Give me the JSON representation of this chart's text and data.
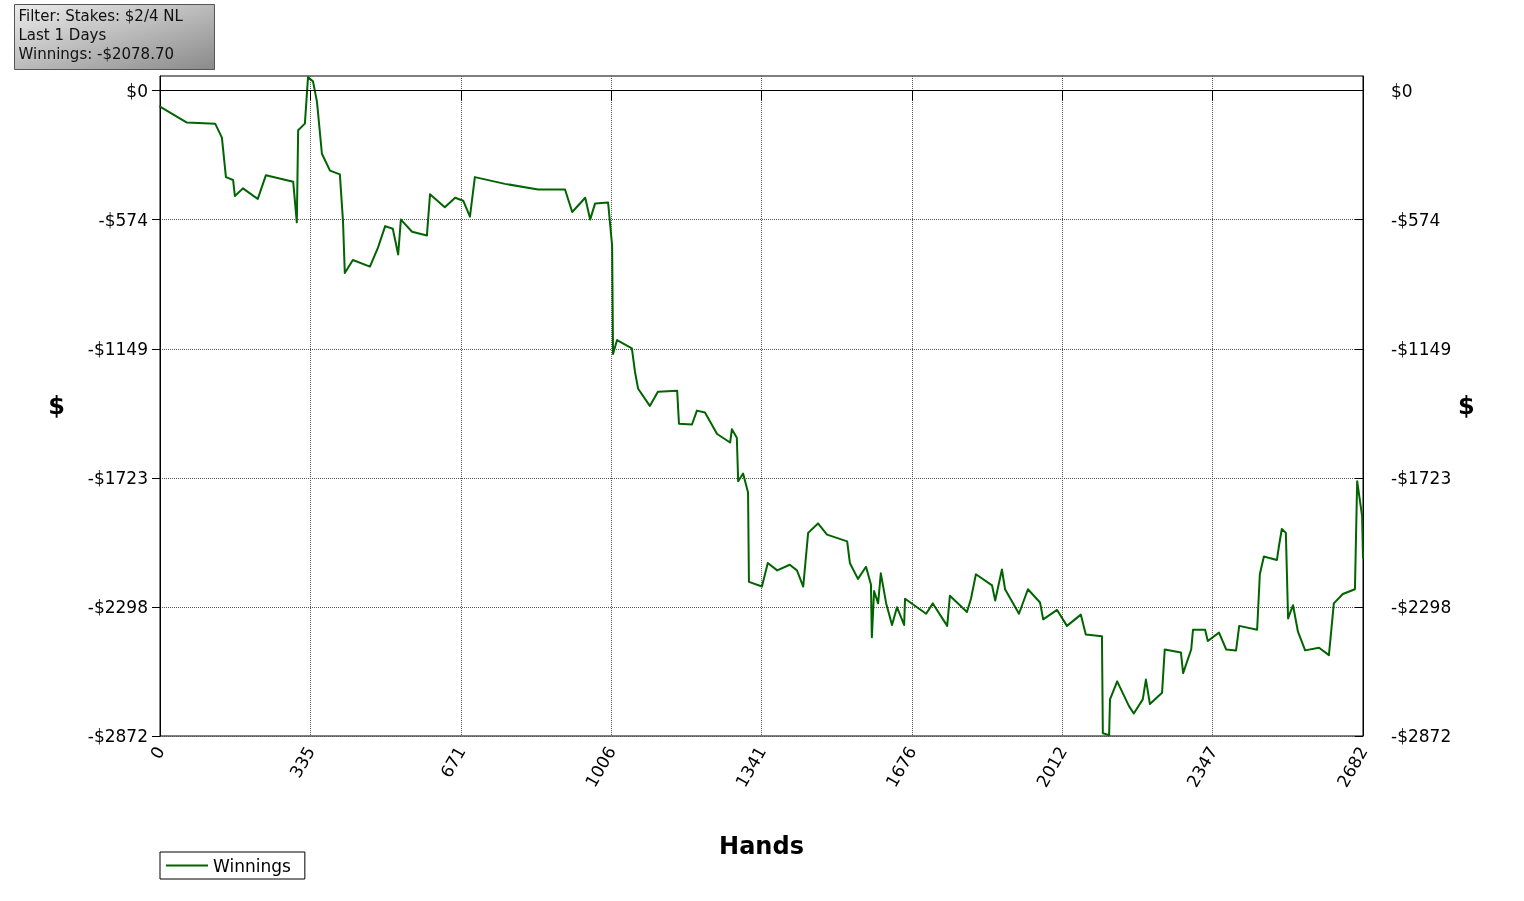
{
  "chart_data": {
    "type": "line",
    "xlabel": "Hands",
    "ylabel": "$",
    "y2label": "$",
    "annotations": [
      "Filter: Stakes: $2/4 NL",
      "Last 1 Days",
      "Winnings: -$2078.70"
    ],
    "xlim": [
      0,
      2682
    ],
    "xticks": [
      0,
      335,
      671,
      1006,
      1341,
      1676,
      2012,
      2347,
      2682
    ],
    "ylim": [
      -2872,
      65
    ],
    "yticks": [
      {
        "value": 0,
        "label": "$0"
      },
      {
        "value": -574,
        "label": "-$574"
      },
      {
        "value": -1149,
        "label": "-$1149"
      },
      {
        "value": -1723,
        "label": "-$1723"
      },
      {
        "value": -2298,
        "label": "-$2298"
      },
      {
        "value": -2872,
        "label": "-$2872"
      }
    ],
    "y2lim": [
      -2872,
      65
    ],
    "y2ticks": [
      {
        "value": 0,
        "label": "$0"
      },
      {
        "value": -574,
        "label": "-$574"
      },
      {
        "value": -1149,
        "label": "-$1149"
      },
      {
        "value": -1723,
        "label": "-$1723"
      },
      {
        "value": -2298,
        "label": "-$2298"
      },
      {
        "value": -2872,
        "label": "-$2872"
      }
    ],
    "ref_lines": [
      {
        "axis": "y",
        "value": 0,
        "color": "#000000",
        "line_style": "solid"
      }
    ],
    "grid": true,
    "legend": "bottom left",
    "marker": "none",
    "line_style": "solid",
    "series": [
      {
        "name": "Winnings",
        "color": "#006400",
        "x": [
          0,
          60,
          123,
          138,
          147,
          163,
          167,
          185,
          218,
          236,
          297,
          305,
          308,
          323,
          330,
          341,
          350,
          361,
          379,
          401,
          408,
          412,
          430,
          468,
          486,
          502,
          519,
          531,
          537,
          562,
          595,
          602,
          635,
          658,
          676,
          691,
          702,
          769,
          843,
          903,
          919,
          948,
          959,
          970,
          999,
          1008,
          1010,
          1019,
          1052,
          1059,
          1066,
          1092,
          1110,
          1153,
          1157,
          1186,
          1197,
          1215,
          1242,
          1271,
          1275,
          1286,
          1289,
          1300,
          1311,
          1313,
          1342,
          1355,
          1376,
          1404,
          1420,
          1434,
          1445,
          1467,
          1487,
          1532,
          1538,
          1556,
          1574,
          1585,
          1587,
          1592,
          1601,
          1607,
          1619,
          1632,
          1643,
          1659,
          1661,
          1708,
          1723,
          1755,
          1761,
          1799,
          1808,
          1819,
          1855,
          1862,
          1877,
          1884,
          1915,
          1935,
          1962,
          1969,
          2000,
          2022,
          2053,
          2064,
          2100,
          2102,
          2116,
          2118,
          2134,
          2160,
          2171,
          2191,
          2198,
          2207,
          2234,
          2240,
          2276,
          2281,
          2299,
          2303,
          2330,
          2336,
          2361,
          2377,
          2399,
          2406,
          2446,
          2452,
          2461,
          2490,
          2495,
          2501,
          2510,
          2515,
          2526,
          2537,
          2553,
          2584,
          2606,
          2617,
          2637,
          2664,
          2669,
          2680,
          2682
        ],
        "values": [
          -71,
          -142,
          -147,
          -209,
          -385,
          -398,
          -469,
          -435,
          -482,
          -377,
          -406,
          -586,
          -176,
          -147,
          60,
          42,
          -50,
          -281,
          -356,
          -373,
          -582,
          -812,
          -754,
          -783,
          -699,
          -603,
          -615,
          -729,
          -574,
          -628,
          -645,
          -461,
          -519,
          -477,
          -490,
          -561,
          -385,
          -415,
          -440,
          -440,
          -540,
          -477,
          -574,
          -502,
          -498,
          -691,
          -1172,
          -1110,
          -1147,
          -1252,
          -1327,
          -1403,
          -1340,
          -1336,
          -1482,
          -1486,
          -1424,
          -1432,
          -1528,
          -1566,
          -1507,
          -1545,
          -1738,
          -1704,
          -1788,
          -2186,
          -2207,
          -2102,
          -2135,
          -2110,
          -2135,
          -2207,
          -1968,
          -1926,
          -1976,
          -2006,
          -2102,
          -2173,
          -2119,
          -2198,
          -2433,
          -2227,
          -2282,
          -2148,
          -2282,
          -2378,
          -2299,
          -2378,
          -2261,
          -2328,
          -2282,
          -2382,
          -2248,
          -2320,
          -2261,
          -2152,
          -2202,
          -2269,
          -2131,
          -2219,
          -2328,
          -2219,
          -2278,
          -2353,
          -2311,
          -2382,
          -2332,
          -2420,
          -2428,
          -2860,
          -2868,
          -2709,
          -2629,
          -2738,
          -2772,
          -2709,
          -2621,
          -2730,
          -2680,
          -2487,
          -2500,
          -2592,
          -2487,
          -2399,
          -2399,
          -2449,
          -2412,
          -2487,
          -2491,
          -2382,
          -2399,
          -2152,
          -2073,
          -2089,
          -2022,
          -1951,
          -1968,
          -2349,
          -2290,
          -2408,
          -2491,
          -2479,
          -2512,
          -2282,
          -2240,
          -2219,
          -1738,
          -1893,
          -2079
        ]
      }
    ]
  }
}
